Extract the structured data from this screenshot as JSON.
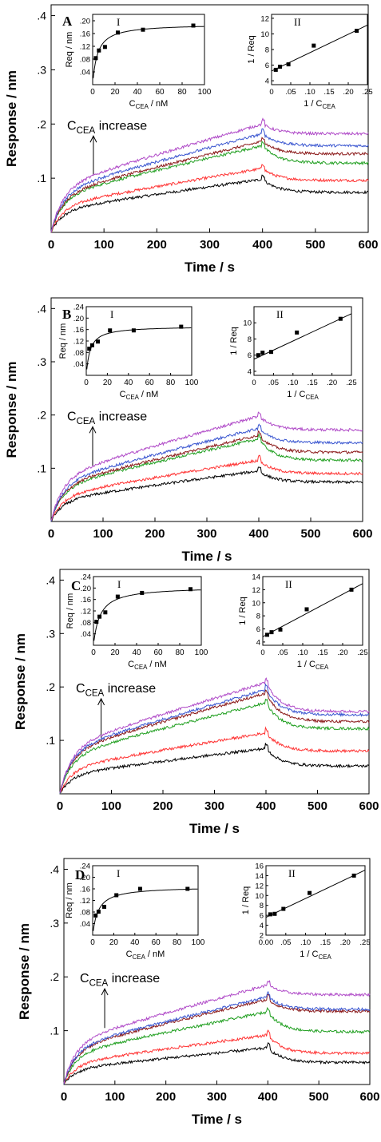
{
  "figure": {
    "panels": [
      {
        "label": "A",
        "annotation": {
          "prefix": "C",
          "sub": "CEA",
          "suffix": " increase"
        },
        "chart_data": {
          "type": "line",
          "xlabel": "Time / s",
          "ylabel": "Response / nm",
          "xlim": [
            0,
            600
          ],
          "ylim": [
            0,
            0.42
          ],
          "x_ticks": [
            "0",
            "100",
            "200",
            "300",
            "400",
            "500",
            "600"
          ],
          "y_ticks": [
            ".1",
            ".2",
            ".3",
            ".4"
          ],
          "grid": false,
          "series": [
            {
              "color": "#000000",
              "peak": 0.098,
              "final": 0.074
            },
            {
              "color": "#ff3333",
              "peak": 0.118,
              "final": 0.096
            },
            {
              "color": "#22a022",
              "peak": 0.16,
              "final": 0.128
            },
            {
              "color": "#8b1a1a",
              "peak": 0.168,
              "final": 0.145
            },
            {
              "color": "#3a56d0",
              "peak": 0.182,
              "final": 0.16
            },
            {
              "color": "#b04bc8",
              "peak": 0.2,
              "final": 0.182
            }
          ]
        },
        "inset_I": {
          "label": "I",
          "ylabel": "Req / nm",
          "xlabel": {
            "prefix": "C",
            "sub": "CEA",
            "suffix": " / nM"
          },
          "x_ticks": [
            "0",
            "20",
            "40",
            "60",
            "80",
            "100"
          ],
          "y_ticks": [
            ".04",
            ".08",
            ".12",
            ".16",
            ".20"
          ],
          "xlim": [
            0,
            100
          ],
          "ylim": [
            0,
            0.22
          ],
          "x": [
            2.8,
            5.6,
            11,
            22.5,
            45,
            90
          ],
          "y": [
            0.083,
            0.107,
            0.118,
            0.163,
            0.172,
            0.185
          ],
          "fit": {
            "rmax": 0.19,
            "kd": 4.3
          }
        },
        "inset_II": {
          "label": "II",
          "ylabel": "1 / Req",
          "xlabel": {
            "prefix": "1 / C",
            "sub": "CEA",
            "suffix": ""
          },
          "x_ticks": [
            "0",
            ".05",
            ".10",
            ".15",
            ".20",
            ".25"
          ],
          "y_ticks": [
            "4",
            "6",
            "8",
            "10",
            "12"
          ],
          "xlim": [
            0,
            0.25
          ],
          "ylim": [
            3.5,
            12.5
          ],
          "x": [
            0.011,
            0.022,
            0.044,
            0.11,
            0.222
          ],
          "y": [
            5.4,
            5.8,
            6.1,
            8.5,
            10.4
          ],
          "fit": {
            "slope": 23.5,
            "intercept": 5.25
          }
        }
      },
      {
        "label": "B",
        "annotation": {
          "prefix": "C",
          "sub": "CEA",
          "suffix": " increase"
        },
        "chart_data": {
          "type": "line",
          "xlabel": "Time / s",
          "ylabel": "Response / nm",
          "xlim": [
            0,
            600
          ],
          "ylim": [
            0,
            0.42
          ],
          "x_ticks": [
            "0",
            "100",
            "200",
            "300",
            "400",
            "500",
            "600"
          ],
          "y_ticks": [
            ".1",
            ".2",
            ".3",
            ".4"
          ],
          "grid": false,
          "series": [
            {
              "color": "#000000",
              "peak": 0.095,
              "final": 0.074
            },
            {
              "color": "#ff3333",
              "peak": 0.115,
              "final": 0.09
            },
            {
              "color": "#22a022",
              "peak": 0.155,
              "final": 0.115
            },
            {
              "color": "#8b1a1a",
              "peak": 0.162,
              "final": 0.13
            },
            {
              "color": "#3a56d0",
              "peak": 0.175,
              "final": 0.148
            },
            {
              "color": "#b04bc8",
              "peak": 0.198,
              "final": 0.172
            }
          ]
        },
        "inset_I": {
          "label": "I",
          "ylabel": "Req / nm",
          "xlabel": {
            "prefix": "C",
            "sub": "CEA",
            "suffix": " / nM"
          },
          "x_ticks": [
            "0",
            "20",
            "40",
            "60",
            "80",
            "100"
          ],
          "y_ticks": [
            ".04",
            ".08",
            ".12",
            ".16",
            ".20",
            ".24"
          ],
          "xlim": [
            0,
            100
          ],
          "ylim": [
            0,
            0.24
          ],
          "x": [
            2.8,
            5.6,
            11,
            22.5,
            45,
            90
          ],
          "y": [
            0.093,
            0.105,
            0.118,
            0.157,
            0.157,
            0.17
          ],
          "fit": {
            "rmax": 0.172,
            "kd": 3.6
          }
        },
        "inset_II": {
          "label": "II",
          "ylabel": "1 / Req",
          "xlabel": {
            "prefix": "1 / C",
            "sub": "CEA",
            "suffix": ""
          },
          "x_ticks": [
            "0",
            ".05",
            ".10",
            ".15",
            ".20",
            ".25"
          ],
          "y_ticks": [
            "4",
            "6",
            "8",
            "10"
          ],
          "xlim": [
            0,
            0.25
          ],
          "ylim": [
            3.5,
            12
          ],
          "x": [
            0.011,
            0.022,
            0.044,
            0.11,
            0.222
          ],
          "y": [
            6.0,
            6.3,
            6.4,
            8.8,
            10.5
          ],
          "fit": {
            "slope": 22.5,
            "intercept": 5.5
          }
        }
      },
      {
        "label": "C",
        "annotation": {
          "prefix": "C",
          "sub": "CEA",
          "suffix": " increase"
        },
        "chart_data": {
          "type": "line",
          "xlabel": "Time / s",
          "ylabel": "Response / nm",
          "xlim": [
            0,
            600
          ],
          "ylim": [
            0,
            0.42
          ],
          "x_ticks": [
            "0",
            "100",
            "200",
            "300",
            "400",
            "500",
            "600"
          ],
          "y_ticks": [
            ".1",
            ".2",
            ".3",
            ".4"
          ],
          "grid": false,
          "series": [
            {
              "color": "#000000",
              "peak": 0.085,
              "final": 0.052
            },
            {
              "color": "#ff3333",
              "peak": 0.114,
              "final": 0.08
            },
            {
              "color": "#22a022",
              "peak": 0.17,
              "final": 0.122
            },
            {
              "color": "#8b1a1a",
              "peak": 0.188,
              "final": 0.135
            },
            {
              "color": "#3a56d0",
              "peak": 0.195,
              "final": 0.148
            },
            {
              "color": "#b04bc8",
              "peak": 0.208,
              "final": 0.154
            }
          ]
        },
        "inset_I": {
          "label": "I",
          "ylabel": "Req / nm",
          "xlabel": {
            "prefix": "C",
            "sub": "CEA",
            "suffix": " / nM"
          },
          "x_ticks": [
            "0",
            "20",
            "40",
            "60",
            "80",
            "100"
          ],
          "y_ticks": [
            ".04",
            ".08",
            ".12",
            ".16",
            ".20",
            ".24"
          ],
          "xlim": [
            0,
            100
          ],
          "ylim": [
            0,
            0.24
          ],
          "x": [
            2.8,
            5.6,
            11,
            22.5,
            45,
            90
          ],
          "y": [
            0.082,
            0.1,
            0.115,
            0.17,
            0.183,
            0.196
          ],
          "fit": {
            "rmax": 0.205,
            "kd": 6.0
          }
        },
        "inset_II": {
          "label": "II",
          "ylabel": "1 / Req",
          "xlabel": {
            "prefix": "1 / C",
            "sub": "CEA",
            "suffix": ""
          },
          "x_ticks": [
            "0",
            ".05",
            ".10",
            ".15",
            ".20",
            ".25"
          ],
          "y_ticks": [
            "4",
            "6",
            "8",
            "10",
            "12",
            "14"
          ],
          "xlim": [
            0,
            0.25
          ],
          "ylim": [
            3.5,
            14
          ],
          "x": [
            0.011,
            0.022,
            0.044,
            0.11,
            0.222
          ],
          "y": [
            5.1,
            5.5,
            5.9,
            9.0,
            12.0
          ],
          "fit": {
            "slope": 32.5,
            "intercept": 4.8
          }
        }
      },
      {
        "label": "D",
        "annotation": {
          "prefix": "C",
          "sub": "CEA",
          "suffix": " increase"
        },
        "chart_data": {
          "type": "line",
          "xlabel": "Time / s",
          "ylabel": "Response / nm",
          "xlim": [
            0,
            600
          ],
          "ylim": [
            0,
            0.42
          ],
          "x_ticks": [
            "0",
            "100",
            "200",
            "300",
            "400",
            "500",
            "600"
          ],
          "y_ticks": [
            ".1",
            ".2",
            ".3",
            ".4"
          ],
          "grid": false,
          "series": [
            {
              "color": "#000000",
              "peak": 0.068,
              "final": 0.041
            },
            {
              "color": "#ff3333",
              "peak": 0.092,
              "final": 0.058
            },
            {
              "color": "#22a022",
              "peak": 0.135,
              "final": 0.098
            },
            {
              "color": "#8b1a1a",
              "peak": 0.158,
              "final": 0.136
            },
            {
              "color": "#3a56d0",
              "peak": 0.163,
              "final": 0.14
            },
            {
              "color": "#b04bc8",
              "peak": 0.185,
              "final": 0.167
            }
          ]
        },
        "inset_I": {
          "label": "I",
          "ylabel": "Req / nm",
          "xlabel": {
            "prefix": "C",
            "sub": "CEA",
            "suffix": " / nM"
          },
          "x_ticks": [
            "0",
            "20",
            "40",
            "60",
            "80",
            "100"
          ],
          "y_ticks": [
            ".04",
            ".08",
            ".12",
            ".16",
            ".20",
            ".24"
          ],
          "xlim": [
            0,
            100
          ],
          "ylim": [
            0,
            0.24
          ],
          "x": [
            2.8,
            5.6,
            11,
            22.5,
            45,
            90
          ],
          "y": [
            0.068,
            0.081,
            0.098,
            0.138,
            0.16,
            0.16
          ],
          "fit": {
            "rmax": 0.168,
            "kd": 5.3
          }
        },
        "inset_II": {
          "label": "II",
          "ylabel": "1 / Req",
          "xlabel": {
            "prefix": "1 / C",
            "sub": "CEA",
            "suffix": ""
          },
          "x_ticks": [
            "0.00",
            ".05",
            ".10",
            ".15",
            ".20",
            ".25"
          ],
          "y_ticks": [
            "2",
            "4",
            "6",
            "8",
            "10",
            "12",
            "14",
            "16"
          ],
          "xlim": [
            0,
            0.25
          ],
          "ylim": [
            2,
            16
          ],
          "x": [
            0.011,
            0.022,
            0.044,
            0.11,
            0.222
          ],
          "y": [
            6.2,
            6.3,
            7.3,
            10.5,
            14.0
          ],
          "fit": {
            "slope": 38.0,
            "intercept": 5.6
          }
        }
      }
    ]
  }
}
